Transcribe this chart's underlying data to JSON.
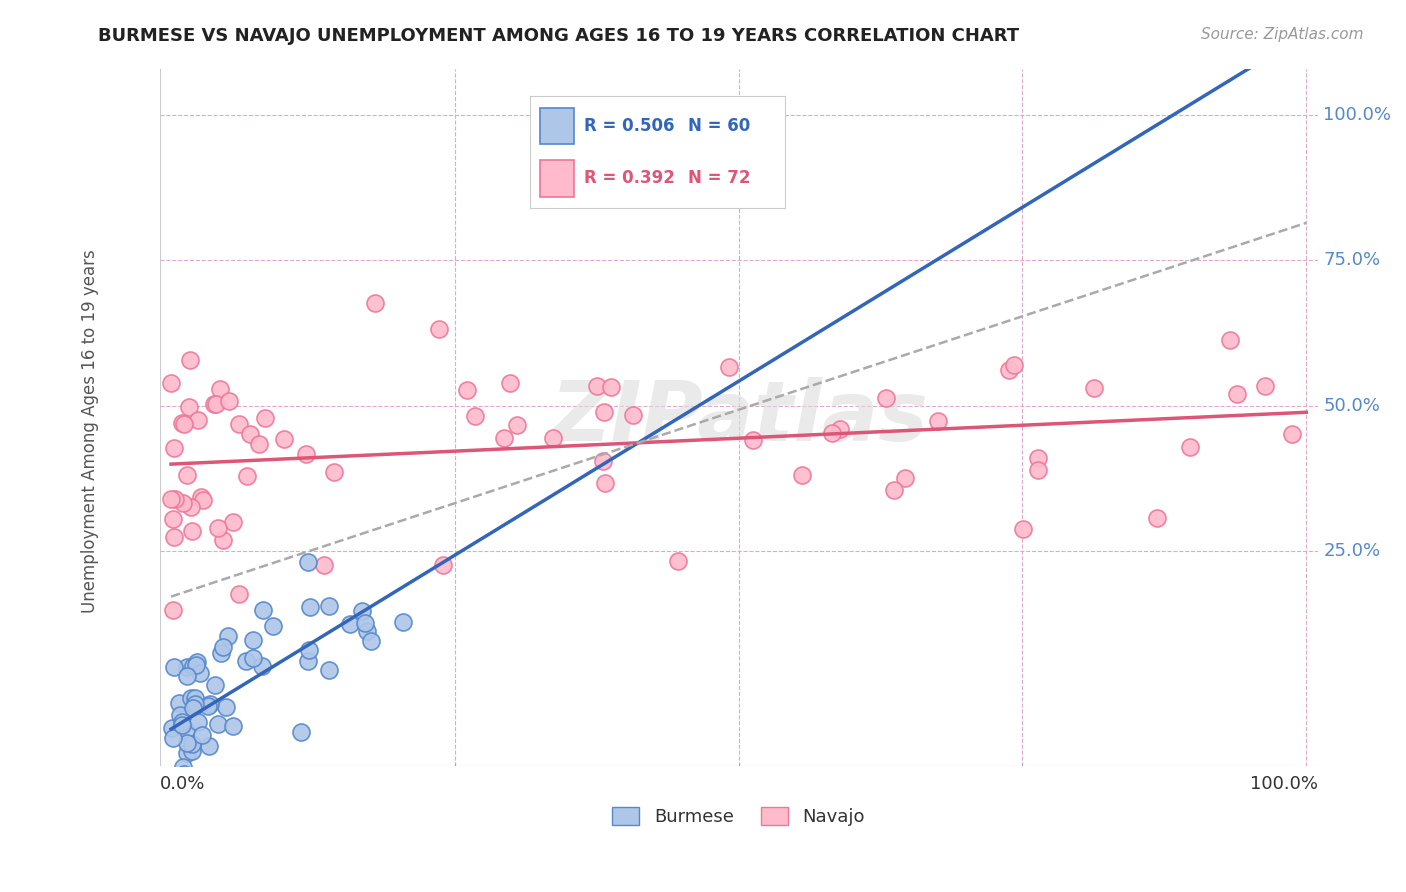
{
  "title": "BURMESE VS NAVAJO UNEMPLOYMENT AMONG AGES 16 TO 19 YEARS CORRELATION CHART",
  "source": "Source: ZipAtlas.com",
  "ylabel": "Unemployment Among Ages 16 to 19 years",
  "legend_burmese_label": "Burmese",
  "legend_navajo_label": "Navajo",
  "R_burmese": 0.506,
  "N_burmese": 60,
  "R_navajo": 0.392,
  "N_navajo": 72,
  "burmese_fill_color": "#AEC6E8",
  "burmese_edge_color": "#5588CC",
  "navajo_fill_color": "#FFBBCC",
  "navajo_edge_color": "#EE7799",
  "burmese_line_color": "#3366BB",
  "navajo_line_color": "#DD5577",
  "dashed_line_color": "#AAAAAA",
  "grid_color": "#DDAACC",
  "background_color": "#FFFFFF",
  "ytick_color": "#5588CC",
  "xtick_color": "#333333",
  "watermark_text": "ZIPatlas",
  "watermark_color": "#DDDDDD",
  "title_color": "#222222",
  "source_color": "#999999",
  "ylabel_color": "#555555"
}
